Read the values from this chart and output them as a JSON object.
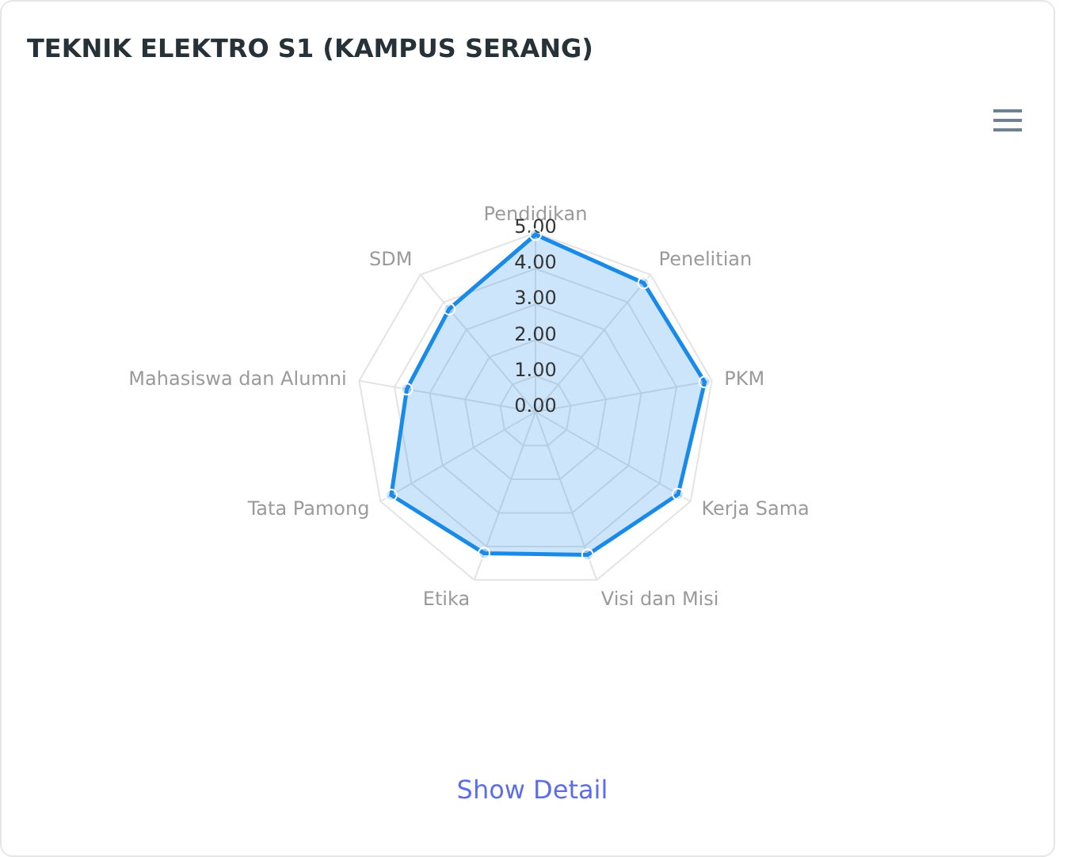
{
  "chart_data": {
    "type": "radar",
    "title": "TEKNIK ELEKTRO S1 (KAMPUS SERANG)",
    "categories": [
      "Pendidikan",
      "Penelitian",
      "PKM",
      "Kerja Sama",
      "Visi dan Misi",
      "Etika",
      "Tata Pamong",
      "Mahasiswa dan Alumni",
      "SDM"
    ],
    "series": [
      {
        "color": "#1a8ae8",
        "values": [
          4.95,
          4.7,
          4.8,
          4.6,
          4.25,
          4.2,
          4.65,
          3.65,
          3.75
        ]
      }
    ],
    "ylim": [
      0,
      5
    ],
    "yticks": [
      {
        "value": 0,
        "label": "0.00"
      },
      {
        "value": 1,
        "label": "1.00"
      },
      {
        "value": 2,
        "label": "2.00"
      },
      {
        "value": 3,
        "label": "3.00"
      },
      {
        "value": 4,
        "label": "4.00"
      },
      {
        "value": 5,
        "label": "5.00"
      }
    ],
    "grid": true,
    "marker": "circle",
    "annotations": [
      "Show Detail"
    ]
  }
}
